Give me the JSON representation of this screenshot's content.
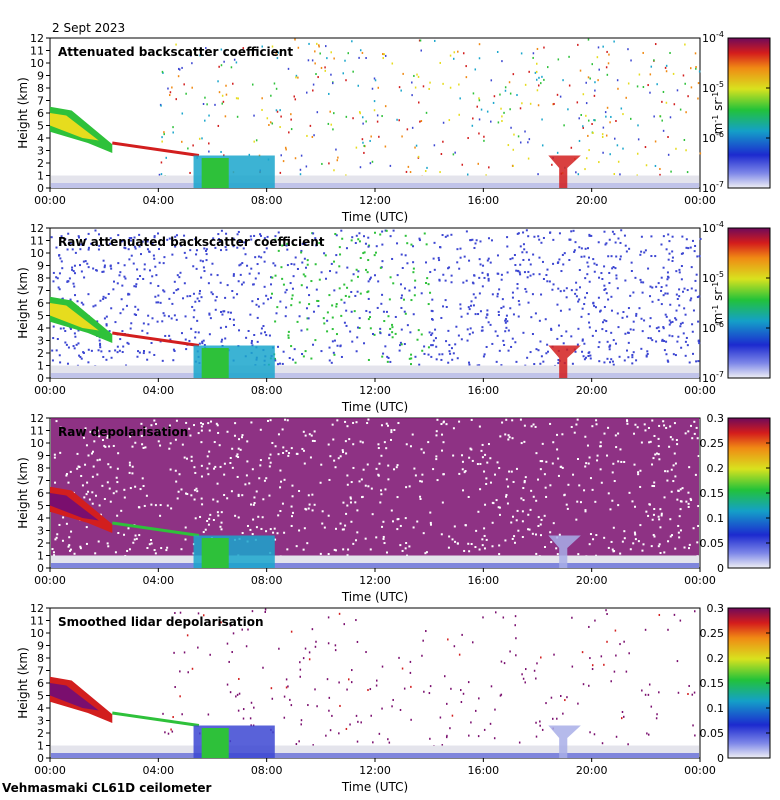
{
  "date": "2 Sept 2023",
  "footer": "Vehmasmaki CL61D ceilometer",
  "colors": {
    "cloud": "#e4e4ec",
    "low_blue": "#3c46d2",
    "green": "#2ec13a",
    "yellow": "#e6dc1e",
    "red": "#d21e1e",
    "purple": "#7a0e6e"
  },
  "chart_data": [
    {
      "type": "heatmap",
      "title": "Attenuated backscatter coefficient",
      "xlabel": "Time (UTC)",
      "ylabel": "Height (km)",
      "x_ticks": [
        "00:00",
        "04:00",
        "08:00",
        "12:00",
        "16:00",
        "20:00",
        "00:00"
      ],
      "y_ticks": [
        "0",
        "1",
        "2",
        "3",
        "4",
        "5",
        "6",
        "7",
        "8",
        "9",
        "10",
        "11",
        "12"
      ],
      "ylim": [
        0,
        12
      ],
      "xlim_hours": [
        0,
        24
      ],
      "colorbar": {
        "scale": "log",
        "range": [
          1e-07,
          0.0001
        ],
        "tick_labels": [
          "10-7",
          "10-6",
          "10-5",
          "10-4"
        ],
        "label": "m-1 sr-1"
      },
      "features": [
        {
          "name": "aerosol layer",
          "time_start_h": 0.0,
          "time_end_h": 2.3,
          "height_top_km": 6.5,
          "height_bottom_km": 2.8
        },
        {
          "name": "descending cloud base",
          "time_start_h": 2.3,
          "time_end_h": 5.5,
          "height_start_km": 3.5,
          "height_end_km": 2.5
        },
        {
          "name": "thick cloud",
          "time_start_h": 5.3,
          "time_end_h": 8.3,
          "height_top_km": 2.6,
          "height_bottom_km": 0.0
        },
        {
          "name": "cloud around 19 UTC",
          "time_start_h": 18.4,
          "time_end_h": 19.6,
          "height_top_km": 2.6,
          "height_bottom_km": 0.0
        }
      ]
    },
    {
      "type": "heatmap",
      "title": "Raw attenuated backscatter coefficient",
      "xlabel": "Time (UTC)",
      "ylabel": "Height (km)",
      "x_ticks": [
        "00:00",
        "04:00",
        "08:00",
        "12:00",
        "16:00",
        "20:00",
        "00:00"
      ],
      "y_ticks": [
        "0",
        "1",
        "2",
        "3",
        "4",
        "5",
        "6",
        "7",
        "8",
        "9",
        "10",
        "11",
        "12"
      ],
      "ylim": [
        0,
        12
      ],
      "xlim_hours": [
        0,
        24
      ],
      "colorbar": {
        "scale": "log",
        "range": [
          1e-07,
          0.0001
        ],
        "tick_labels": [
          "10-7",
          "10-6",
          "10-5",
          "10-4"
        ],
        "label": "m-1 sr-1"
      }
    },
    {
      "type": "heatmap",
      "title": "Raw depolarisation",
      "xlabel": "Time (UTC)",
      "ylabel": "Height (km)",
      "x_ticks": [
        "00:00",
        "04:00",
        "08:00",
        "12:00",
        "16:00",
        "20:00",
        "00:00"
      ],
      "y_ticks": [
        "0",
        "1",
        "2",
        "3",
        "4",
        "5",
        "6",
        "7",
        "8",
        "9",
        "10",
        "11",
        "12"
      ],
      "ylim": [
        0,
        12
      ],
      "xlim_hours": [
        0,
        24
      ],
      "colorbar": {
        "scale": "linear",
        "range": [
          0,
          0.3
        ],
        "tick_labels": [
          "0",
          "0.05",
          "0.1",
          "0.15",
          "0.2",
          "0.25",
          "0.3"
        ],
        "label": ""
      }
    },
    {
      "type": "heatmap",
      "title": "Smoothed lidar depolarisation",
      "xlabel": "Time (UTC)",
      "ylabel": "Height (km)",
      "x_ticks": [
        "00:00",
        "04:00",
        "08:00",
        "12:00",
        "16:00",
        "20:00",
        "00:00"
      ],
      "y_ticks": [
        "0",
        "1",
        "2",
        "3",
        "4",
        "5",
        "6",
        "7",
        "8",
        "9",
        "10",
        "11",
        "12"
      ],
      "ylim": [
        0,
        12
      ],
      "xlim_hours": [
        0,
        24
      ],
      "colorbar": {
        "scale": "linear",
        "range": [
          0,
          0.3
        ],
        "tick_labels": [
          "0",
          "0.05",
          "0.1",
          "0.15",
          "0.2",
          "0.25",
          "0.3"
        ],
        "label": ""
      }
    }
  ]
}
